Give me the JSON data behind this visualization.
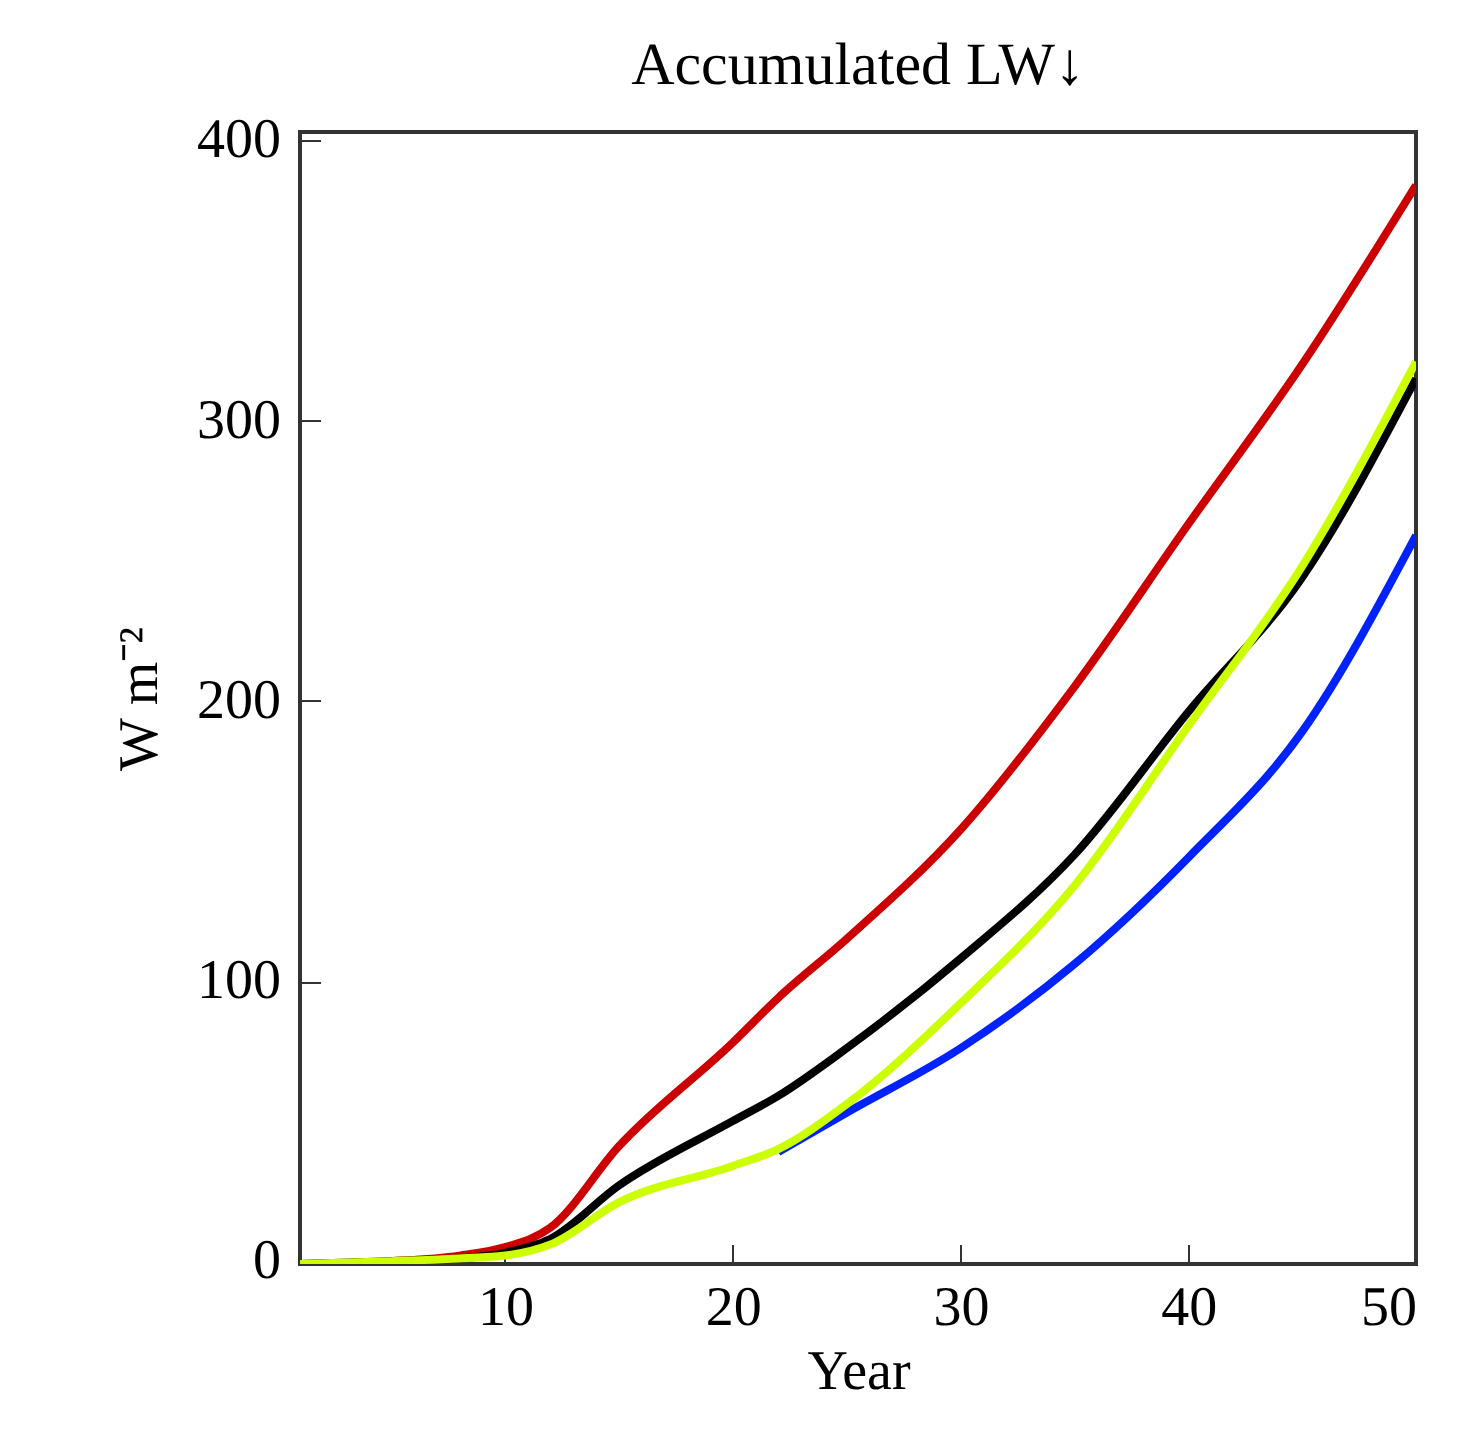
{
  "chart_data": {
    "type": "line",
    "title": "Accumulated LW↓",
    "xlabel": "Year",
    "ylabel": "W m⁻²",
    "xlim": [
      1,
      50
    ],
    "ylim": [
      -1,
      403
    ],
    "xticks": [
      10,
      20,
      30,
      40,
      50
    ],
    "yticks": [
      0,
      100,
      200,
      300,
      400
    ],
    "grid": false,
    "legend": false,
    "line_style": "solid",
    "marker": "none",
    "x": [
      1,
      5,
      8,
      10,
      12,
      15,
      20,
      22,
      25,
      30,
      35,
      40,
      45,
      50
    ],
    "series": [
      {
        "color": "#cc0000",
        "values": [
          -1,
          0,
          2,
          5,
          12,
          41,
          78,
          94,
          115,
          154,
          205,
          263,
          320,
          384
        ]
      },
      {
        "color": "#000000",
        "values": [
          -1,
          0,
          1,
          3,
          8,
          27,
          50,
          59,
          76,
          108,
          145,
          196,
          244,
          315
        ]
      },
      {
        "color": "#0022ff",
        "values": [
          null,
          null,
          null,
          null,
          null,
          null,
          null,
          39,
          53,
          76,
          106,
          144,
          189,
          259
        ]
      },
      {
        "color": "#ccff00",
        "values": [
          -1,
          0,
          1,
          2,
          6,
          21,
          34,
          40,
          56,
          92,
          134,
          191,
          248,
          321
        ]
      }
    ]
  }
}
